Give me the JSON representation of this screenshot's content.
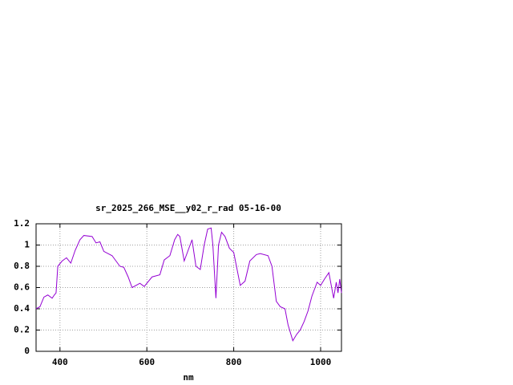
{
  "chart_data": {
    "type": "line",
    "title": "sr_2025_266_MSE__y02_r_rad 05-16-00",
    "x_label": "nm",
    "xlim": [
      345,
      1048
    ],
    "xticks": [
      400,
      600,
      800,
      1000
    ],
    "ylim": [
      0,
      1.2
    ],
    "yticks": [
      0,
      0.2,
      0.4,
      0.6,
      0.8,
      1,
      1.2
    ],
    "grid": true,
    "series": [
      {
        "color": "#9400d3",
        "x": [
          345,
          354,
          363,
          372,
          382,
          387,
          391,
          395,
          405,
          415,
          425,
          435,
          446,
          455,
          474,
          483,
          492,
          501,
          520,
          538,
          547,
          557,
          566,
          584,
          594,
          612,
          630,
          640,
          653,
          664,
          671,
          676,
          686,
          704,
          713,
          723,
          732,
          740,
          748,
          752,
          759,
          765,
          772,
          780,
          790,
          800,
          815,
          826,
          837,
          852,
          861,
          879,
          888,
          898,
          907,
          918,
          925,
          936,
          945,
          953,
          962,
          971,
          980,
          992,
          1000,
          1009,
          1019,
          1030,
          1036,
          1040,
          1044,
          1048
        ],
        "values": [
          0.4,
          0.42,
          0.51,
          0.53,
          0.5,
          0.53,
          0.55,
          0.8,
          0.85,
          0.88,
          0.83,
          0.95,
          1.05,
          1.09,
          1.08,
          1.02,
          1.03,
          0.94,
          0.9,
          0.8,
          0.79,
          0.7,
          0.6,
          0.64,
          0.61,
          0.7,
          0.72,
          0.86,
          0.9,
          1.05,
          1.1,
          1.08,
          0.85,
          1.05,
          0.8,
          0.77,
          1.0,
          1.15,
          1.16,
          1.0,
          0.5,
          1.0,
          1.12,
          1.08,
          0.97,
          0.93,
          0.62,
          0.66,
          0.85,
          0.91,
          0.92,
          0.9,
          0.8,
          0.47,
          0.42,
          0.4,
          0.25,
          0.1,
          0.16,
          0.2,
          0.28,
          0.38,
          0.52,
          0.65,
          0.62,
          0.68,
          0.74,
          0.5,
          0.65,
          0.55,
          0.68,
          0.55
        ]
      }
    ]
  }
}
